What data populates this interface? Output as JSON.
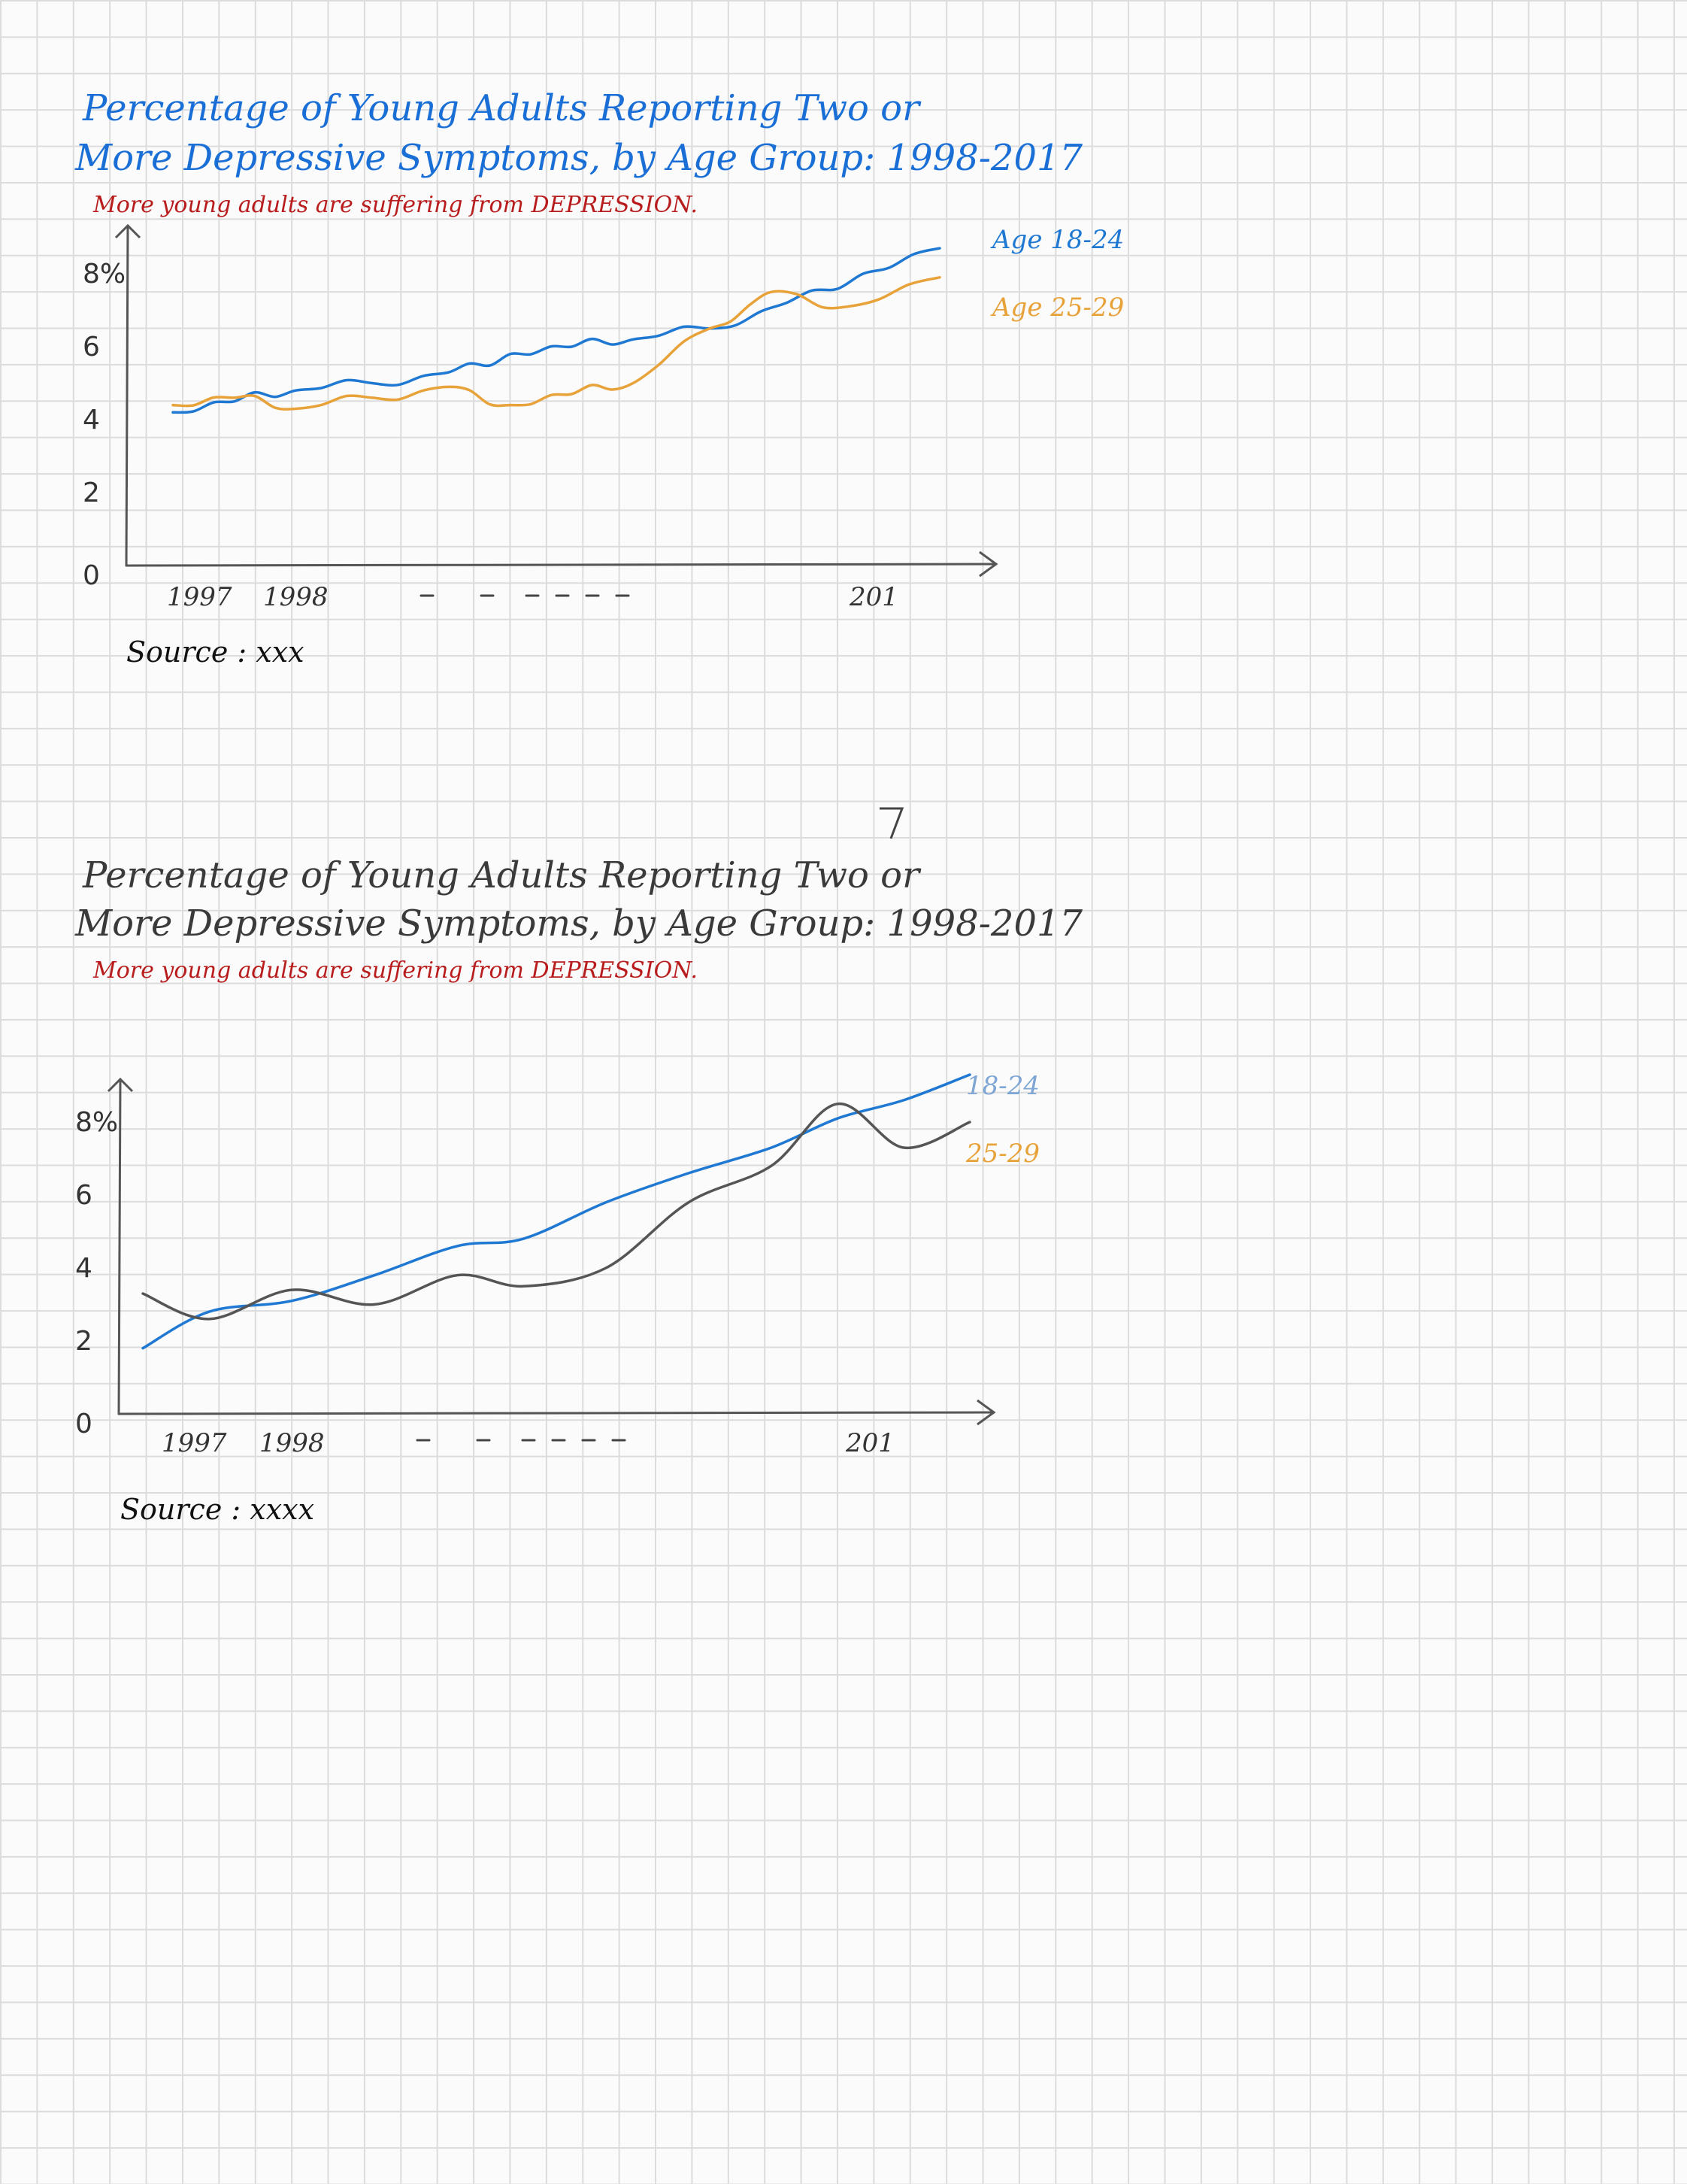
{
  "colors": {
    "title": "#1a6fd6",
    "title2": "#3a3a3a",
    "subtitle": "#b81c1c",
    "blue": "#1f78d1",
    "orange": "#e8a23a",
    "gray": "#555555",
    "legend_blue2": "#7ea6d4",
    "axis": "#555555"
  },
  "chart_data": [
    {
      "type": "line",
      "title_line1": "Percentage of Young Adults Reporting Two or",
      "title_line2": "More Depressive Symptoms, by Age Group: 1998-2017",
      "subtitle": "More young adults are suffering from DEPRESSION.",
      "ylabel": "",
      "xlabel": "",
      "ylim": [
        0,
        9
      ],
      "y_ticks": [
        {
          "value": 0,
          "label": "0"
        },
        {
          "value": 2,
          "label": "2"
        },
        {
          "value": 4,
          "label": "4"
        },
        {
          "value": 6,
          "label": "6"
        },
        {
          "value": 8,
          "label": "8%"
        }
      ],
      "x_ticks": [
        "1997",
        "1998",
        "201"
      ],
      "source": "Source : xxx",
      "grid": false,
      "legend_position": "top-right",
      "series": [
        {
          "name": "Age 18-24",
          "color": "blue",
          "values": [
            4.2,
            4.5,
            4.8,
            5.0,
            5.3,
            5.8,
            6.0,
            6.2,
            6.5,
            7.2,
            8.0,
            8.7
          ],
          "x": [
            0.0,
            0.08,
            0.16,
            0.26,
            0.36,
            0.44,
            0.52,
            0.6,
            0.7,
            0.8,
            0.9,
            1.0
          ]
        },
        {
          "name": "Age 25-29",
          "color": "orange",
          "values": [
            4.4,
            4.6,
            4.3,
            4.6,
            4.9,
            4.4,
            4.7,
            5.0,
            6.5,
            7.5,
            7.1,
            7.9
          ],
          "x": [
            0.0,
            0.08,
            0.16,
            0.26,
            0.36,
            0.44,
            0.52,
            0.6,
            0.7,
            0.78,
            0.88,
            1.0
          ]
        }
      ]
    },
    {
      "type": "line",
      "title_line1": "Percentage of Young Adults Reporting Two or",
      "title_line2": "More Depressive Symptoms, by Age Group: 1998-2017",
      "subtitle": "More young adults are suffering from DEPRESSION.",
      "ylabel": "",
      "xlabel": "",
      "ylim": [
        0,
        9
      ],
      "y_ticks": [
        {
          "value": 0,
          "label": "0"
        },
        {
          "value": 2,
          "label": "2"
        },
        {
          "value": 4,
          "label": "4"
        },
        {
          "value": 6,
          "label": "6"
        },
        {
          "value": 8,
          "label": "8%"
        }
      ],
      "x_ticks": [
        "1997",
        "1998",
        "201"
      ],
      "source": "Source : xxxx",
      "grid": false,
      "legend_position": "right",
      "series": [
        {
          "name": "18-24",
          "color": "blue",
          "values": [
            1.8,
            2.8,
            3.1,
            3.8,
            4.6,
            4.8,
            5.8,
            6.6,
            7.3,
            8.1,
            8.6,
            9.3
          ],
          "x": [
            0.0,
            0.08,
            0.18,
            0.28,
            0.38,
            0.46,
            0.56,
            0.66,
            0.76,
            0.84,
            0.92,
            1.0
          ]
        },
        {
          "name": "25-29",
          "color": "gray",
          "values": [
            3.3,
            2.6,
            3.4,
            3.0,
            3.8,
            3.5,
            4.0,
            5.8,
            6.8,
            8.5,
            7.3,
            8.0
          ],
          "x": [
            0.0,
            0.08,
            0.18,
            0.28,
            0.38,
            0.46,
            0.56,
            0.66,
            0.76,
            0.84,
            0.92,
            1.0
          ]
        }
      ]
    }
  ]
}
